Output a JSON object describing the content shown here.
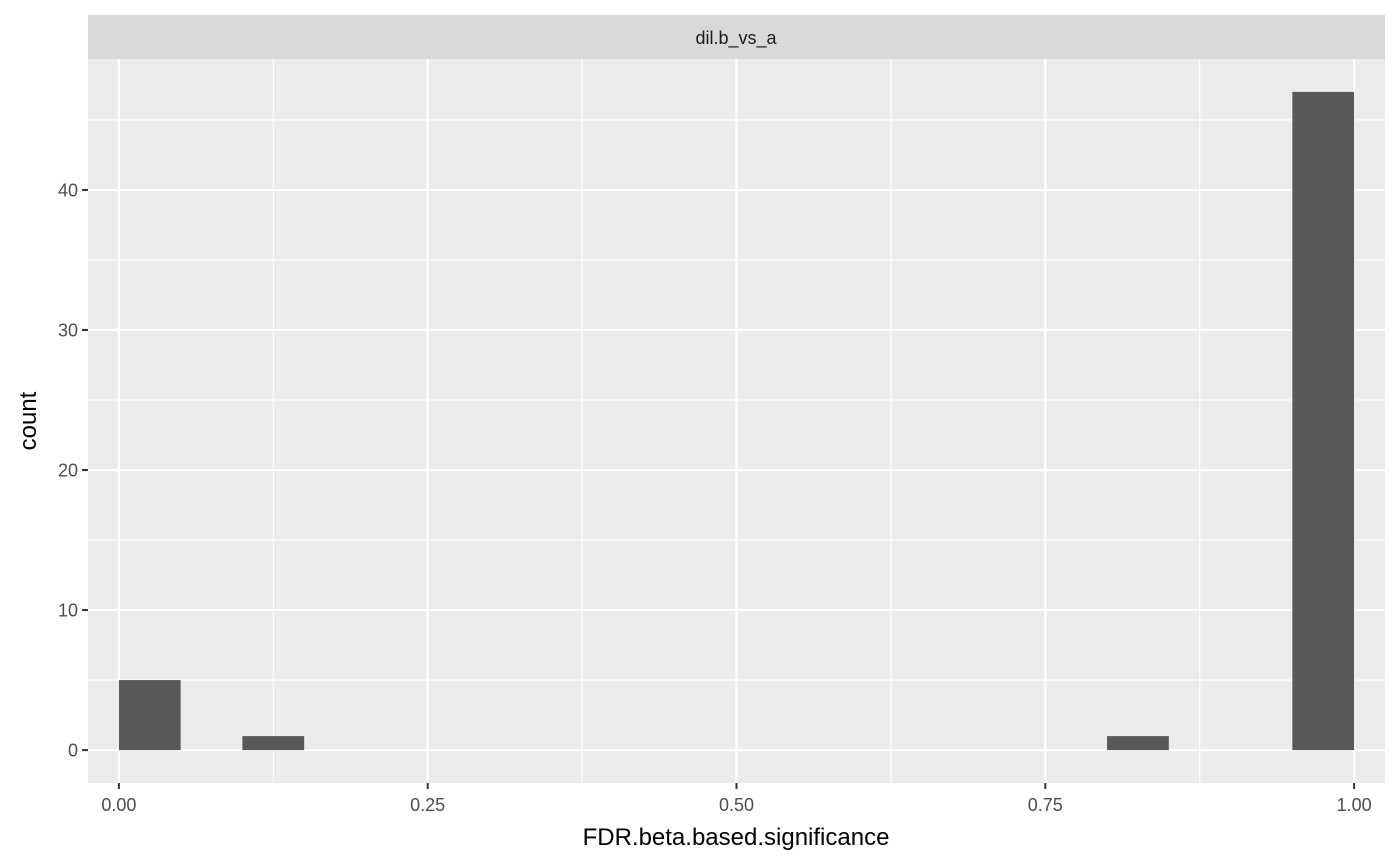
{
  "chart_data": {
    "type": "bar",
    "facet_label": "dil.b_vs_a",
    "xlabel": "FDR.beta.based.significance",
    "ylabel": "count",
    "xlim": [
      -0.025,
      1.025
    ],
    "ylim": [
      -2.35,
      49.35
    ],
    "x_ticks": [
      {
        "value": 0.0,
        "label": "0.00"
      },
      {
        "value": 0.25,
        "label": "0.25"
      },
      {
        "value": 0.5,
        "label": "0.50"
      },
      {
        "value": 0.75,
        "label": "0.75"
      },
      {
        "value": 1.0,
        "label": "1.00"
      }
    ],
    "y_ticks": [
      {
        "value": 0,
        "label": "0"
      },
      {
        "value": 10,
        "label": "10"
      },
      {
        "value": 20,
        "label": "20"
      },
      {
        "value": 30,
        "label": "30"
      },
      {
        "value": 40,
        "label": "40"
      }
    ],
    "x_minor_breaks": [
      0.125,
      0.375,
      0.625,
      0.875
    ],
    "y_minor_breaks": [
      5,
      15,
      25,
      35,
      45
    ],
    "bins": [
      {
        "x0": 0.0,
        "x1": 0.05,
        "count": 5
      },
      {
        "x0": 0.1,
        "x1": 0.15,
        "count": 1
      },
      {
        "x0": 0.8,
        "x1": 0.85,
        "count": 1
      },
      {
        "x0": 0.95,
        "x1": 1.0,
        "count": 47
      }
    ],
    "colors": {
      "panel_background": "#ebebeb",
      "strip_background": "#d9d9d9",
      "grid": "#ffffff",
      "bar_fill": "#595959"
    }
  }
}
